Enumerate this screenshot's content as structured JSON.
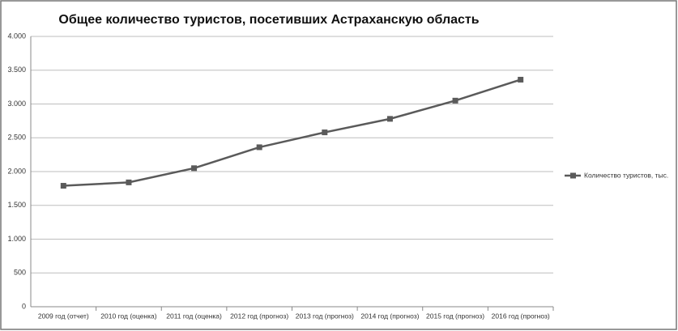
{
  "chart_data": {
    "type": "line",
    "title": "Общее количество туристов, посетивших Астраханскую область",
    "categories": [
      "2009 год (отчет)",
      "2010 год (оценка)",
      "2011 год (оценка)",
      "2012 год (прогноз)",
      "2013 год (прогноз)",
      "2014 год (прогноз)",
      "2015 год (прогноз)",
      "2016 год (прогноз)"
    ],
    "series": [
      {
        "name": "Количество туристов, тыс.",
        "color": "#5a5a5a",
        "values": [
          1790,
          1840,
          2050,
          2360,
          2580,
          2780,
          3050,
          3360
        ]
      }
    ],
    "ylim": [
      0,
      4000
    ],
    "yticks": [
      0,
      500,
      {
        "value": 1000,
        "label": "1.000"
      },
      {
        "value": 1500,
        "label": "1.500"
      },
      {
        "value": 2000,
        "label": "2.000"
      },
      {
        "value": 2500,
        "label": "2.500"
      },
      {
        "value": 3000,
        "label": "3.000"
      },
      {
        "value": 3500,
        "label": "3.500"
      },
      {
        "value": 4000,
        "label": "4.000"
      }
    ],
    "grid": true,
    "legend": "right"
  }
}
